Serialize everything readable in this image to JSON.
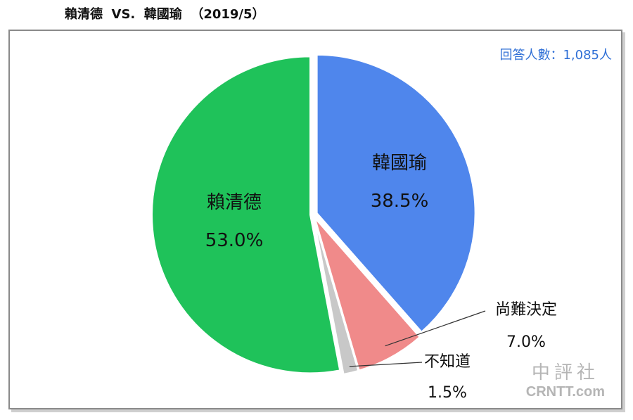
{
  "title": "賴清德  VS.  韓國瑜  （2019/5）",
  "respondents": "回答人數：1,085人",
  "watermark": {
    "cn": "中評社",
    "en": "CRNTT.com"
  },
  "chart_data": {
    "type": "pie",
    "title": "賴清德  VS.  韓國瑜  （2019/5）",
    "slices": [
      {
        "label": "韓國瑜",
        "value": 38.5,
        "value_text": "38.5%",
        "color": "#4f86ec"
      },
      {
        "label": "尚難決定",
        "value": 7.0,
        "value_text": "7.0%",
        "color": "#f08a8a"
      },
      {
        "label": "不知道",
        "value": 1.5,
        "value_text": "1.5%",
        "color": "#c8c8c8"
      },
      {
        "label": "賴清德",
        "value": 53.0,
        "value_text": "53.0%",
        "color": "#1fc25a"
      }
    ],
    "start": "12 o'clock",
    "direction": "clockwise"
  }
}
